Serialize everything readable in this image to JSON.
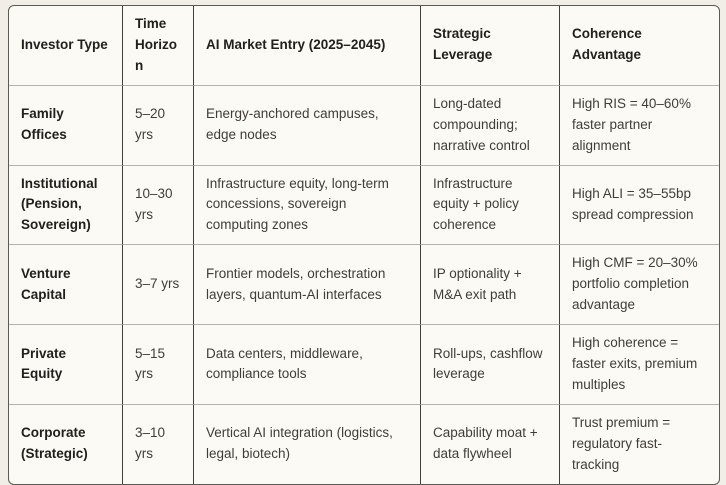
{
  "colors": {
    "page_background": "#f0eee7",
    "table_background": "#fbfaf5",
    "outer_border": "#5b5952",
    "column_border": "#413f38",
    "row_border": "#b5b3ac",
    "heading_text": "#22201c",
    "body_text": "#403d38"
  },
  "table": {
    "columns": [
      {
        "label": "Investor Type"
      },
      {
        "label": "Time Horizon"
      },
      {
        "label": "AI Market Entry (2025–2045)"
      },
      {
        "label": "Strategic Leverage"
      },
      {
        "label": "Coherence Advantage"
      }
    ],
    "rows": [
      {
        "investor_type": "Family Offices",
        "time_horizon": "5–20 yrs",
        "market_entry": "Energy-anchored campuses, edge nodes",
        "strategic_leverage": "Long-dated compounding; narrative control",
        "coherence_advantage": "High RIS = 40–60% faster partner alignment"
      },
      {
        "investor_type": "Institutional (Pension, Sovereign)",
        "time_horizon": "10–30 yrs",
        "market_entry": "Infrastructure equity, long-term concessions, sovereign computing zones",
        "strategic_leverage": "Infrastructure equity + policy coherence",
        "coherence_advantage": "High ALI = 35–55bp spread compression"
      },
      {
        "investor_type": "Venture Capital",
        "time_horizon": "3–7 yrs",
        "market_entry": "Frontier models, orchestration layers, quantum-AI interfaces",
        "strategic_leverage": "IP optionality + M&A exit path",
        "coherence_advantage": "High CMF = 20–30% portfolio completion advantage"
      },
      {
        "investor_type": "Private Equity",
        "time_horizon": "5–15 yrs",
        "market_entry": "Data centers, middleware, compliance tools",
        "strategic_leverage": "Roll-ups, cashflow leverage",
        "coherence_advantage": "High coherence = faster exits, premium multiples"
      },
      {
        "investor_type": "Corporate (Strategic)",
        "time_horizon": "3–10 yrs",
        "market_entry": "Vertical AI integration (logistics, legal, biotech)",
        "strategic_leverage": "Capability moat + data flywheel",
        "coherence_advantage": "Trust premium = regulatory fast-tracking"
      }
    ]
  }
}
